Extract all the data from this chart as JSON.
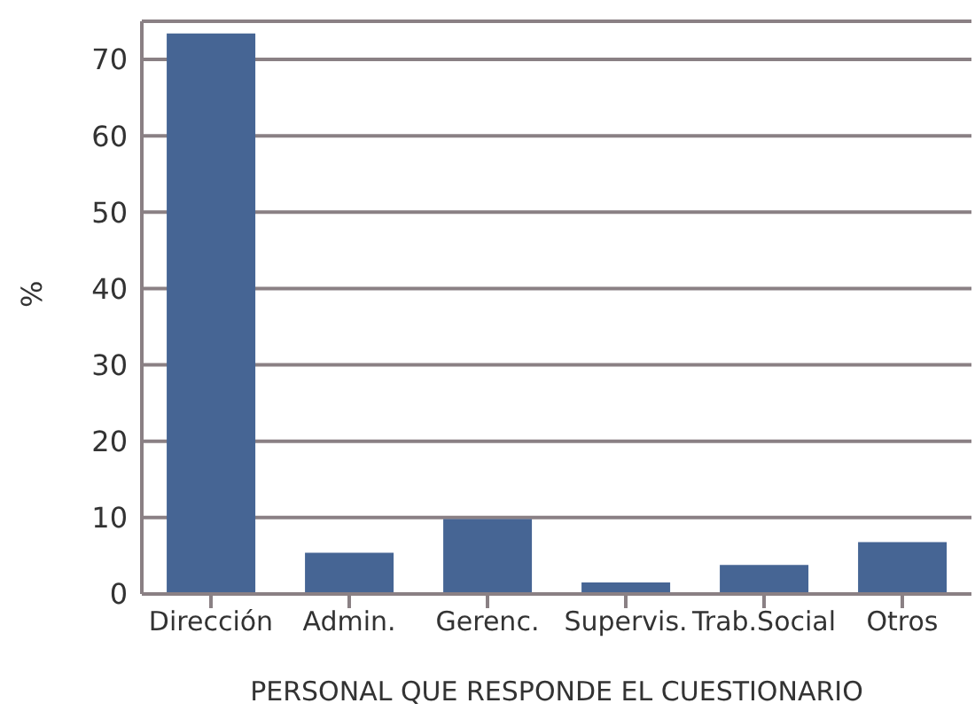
{
  "chart_data": {
    "type": "bar",
    "xlabel": "PERSONAL QUE RESPONDE EL CUESTIONARIO",
    "ylabel": "%",
    "categories": [
      "Dirección",
      "Admin.",
      "Gerenc.",
      "Supervis.",
      "Trab.Social",
      "Otros"
    ],
    "values": [
      73.4,
      5.4,
      9.8,
      1.5,
      3.8,
      6.8
    ],
    "color": "#466594",
    "ylim": [
      0,
      75
    ],
    "yticks": [
      0,
      10,
      20,
      30,
      40,
      50,
      60,
      70
    ],
    "grid": "y"
  }
}
